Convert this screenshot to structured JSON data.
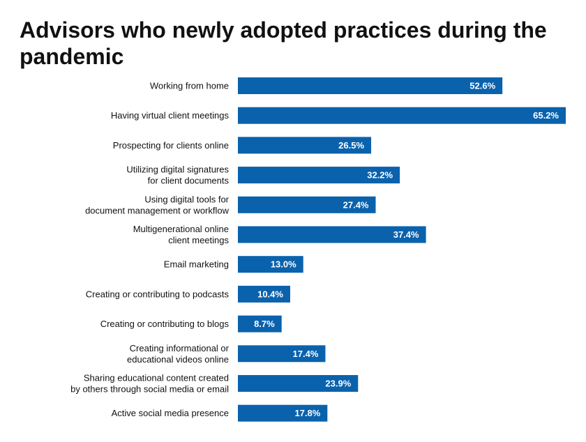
{
  "chart_data": {
    "type": "bar",
    "orientation": "horizontal",
    "title": "Advisors who newly adopted practices during the pandemic",
    "categories": [
      [
        "Working from home"
      ],
      [
        "Having virtual client meetings"
      ],
      [
        "Prospecting for clients online"
      ],
      [
        "Utilizing digital signatures",
        "for client documents"
      ],
      [
        "Using digital tools for",
        "document management or workflow"
      ],
      [
        "Multigenerational online",
        "client meetings"
      ],
      [
        "Email marketing"
      ],
      [
        "Creating or contributing to podcasts"
      ],
      [
        "Creating or contributing to blogs"
      ],
      [
        "Creating informational or",
        "educational videos online"
      ],
      [
        "Sharing educational content created",
        "by others through social media or email"
      ],
      [
        "Active social media presence"
      ]
    ],
    "values": [
      52.6,
      65.2,
      26.5,
      32.2,
      27.4,
      37.4,
      13.0,
      10.4,
      8.7,
      17.4,
      23.9,
      17.8
    ],
    "value_labels": [
      "52.6%",
      "65.2%",
      "26.5%",
      "32.2%",
      "27.4%",
      "37.4%",
      "13.0%",
      "10.4%",
      "8.7%",
      "17.4%",
      "23.9%",
      "17.8%"
    ],
    "xlim": [
      0,
      65.2
    ],
    "grid": false,
    "bar_color": "#0a62ad",
    "label_color": "#ffffff"
  }
}
